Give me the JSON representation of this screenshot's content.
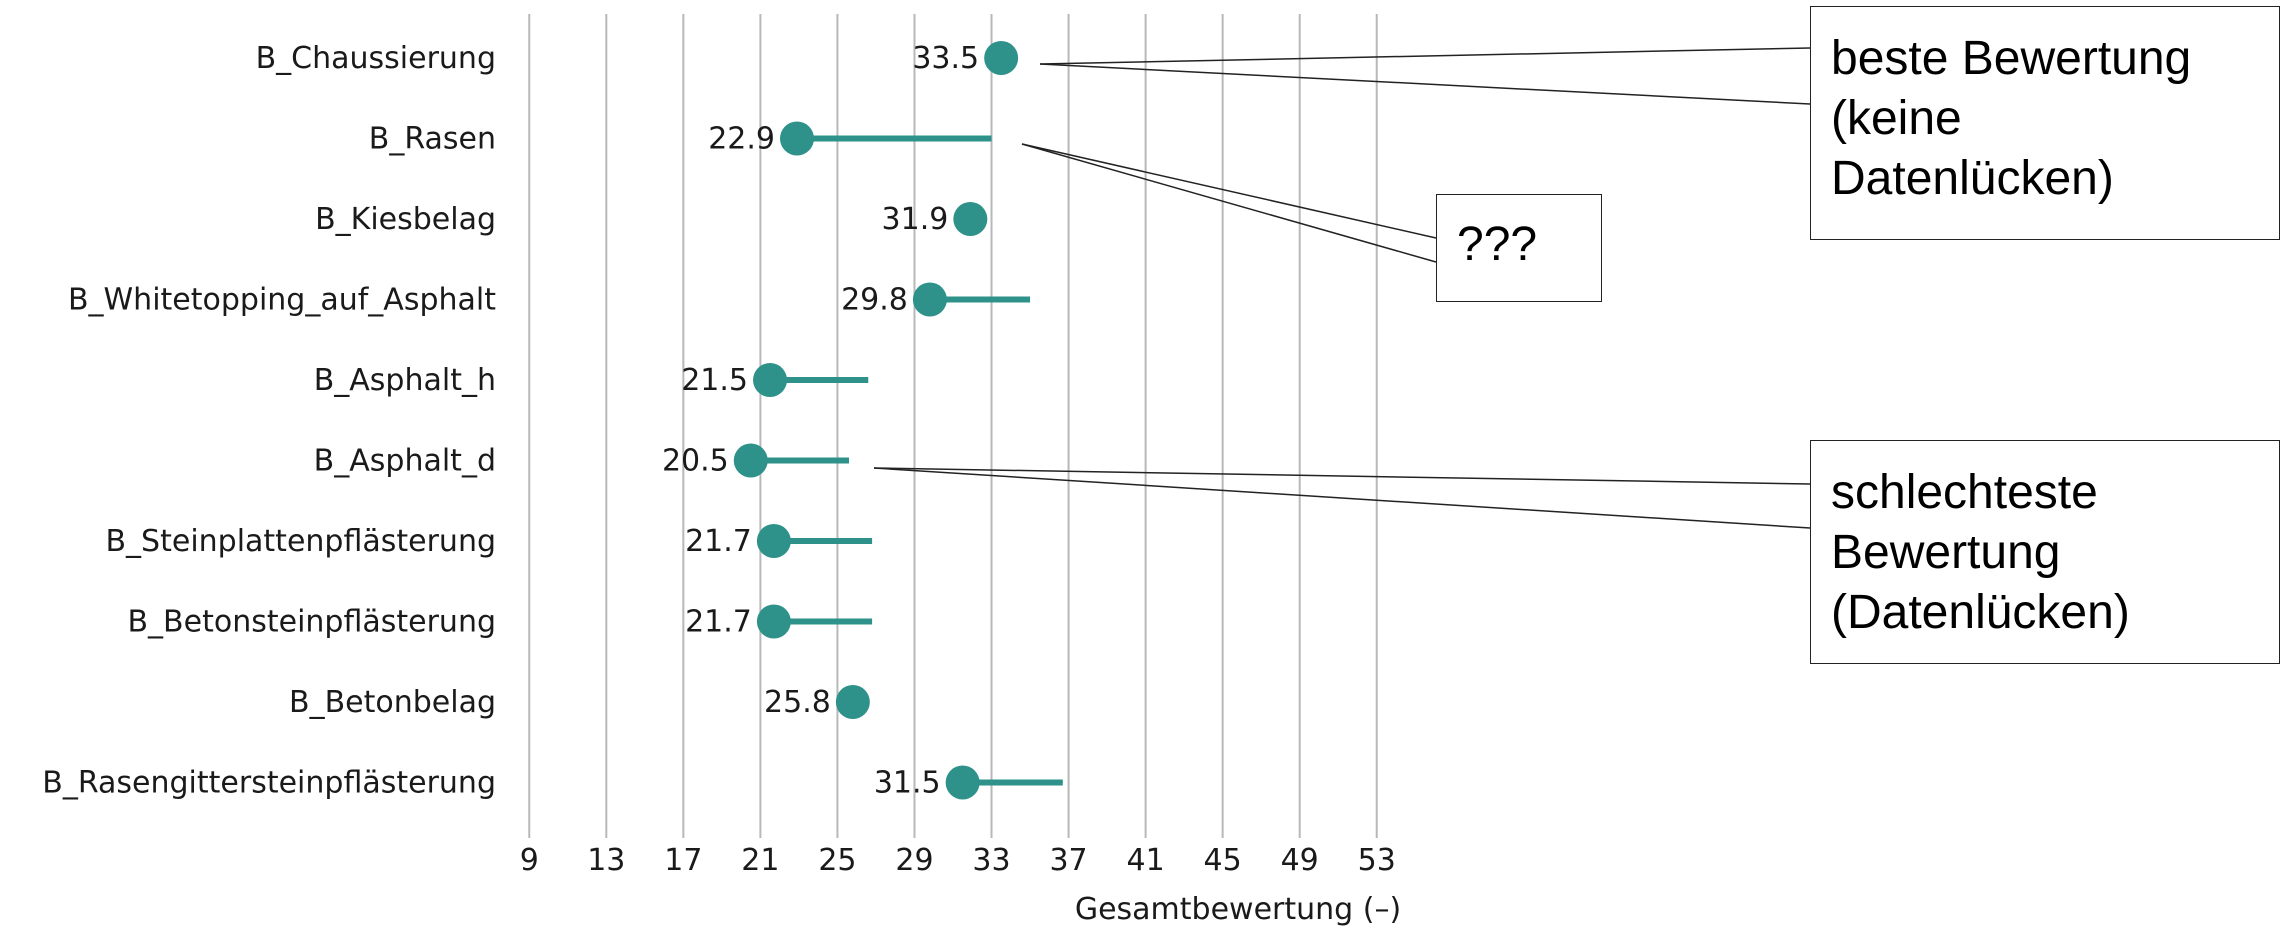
{
  "chart_data": {
    "type": "dot",
    "categories": [
      "B_Chaussierung",
      "B_Rasen",
      "B_Kiesbelag",
      "B_Whitetopping_auf_Asphalt",
      "B_Asphalt_h",
      "B_Asphalt_d",
      "B_Steinplattenpflästerung",
      "B_Betonsteinpflästerung",
      "B_Betonbelag",
      "B_Rasengittersteinpflästerung"
    ],
    "values": [
      33.5,
      22.9,
      31.9,
      29.8,
      21.5,
      20.5,
      21.7,
      21.7,
      25.8,
      31.5
    ],
    "value_labels": [
      "33.5",
      "22.9",
      "31.9",
      "29.8",
      "21.5",
      "20.5",
      "21.7",
      "21.7",
      "25.8",
      "31.5"
    ],
    "range_upper": [
      33.5,
      33.0,
      31.9,
      35.0,
      26.6,
      25.6,
      26.8,
      26.8,
      25.8,
      36.7
    ],
    "xlabel": "Gesamtbewertung (–)",
    "xticks": [
      9,
      13,
      17,
      21,
      25,
      29,
      33,
      37,
      41,
      45,
      49,
      53
    ],
    "xlim": [
      8,
      54
    ],
    "grid": true,
    "series_color": "#2e918a",
    "gridline_color": "#b8b8b8"
  },
  "annotations": {
    "best": "beste Bewertung\n(keine\nDatenlücken)",
    "question": "???",
    "worst": "schlechteste\nBewertung\n(Datenlücken)"
  }
}
